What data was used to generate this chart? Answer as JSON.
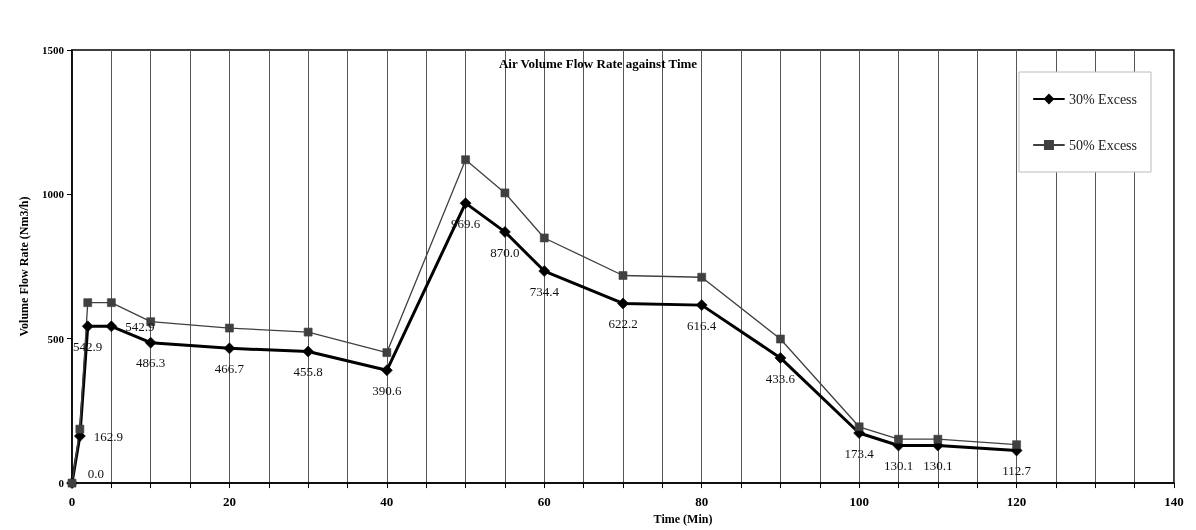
{
  "chart_data": {
    "type": "line",
    "title": "Air Volume Flow Rate against Time",
    "xlabel": "Time (Min)",
    "ylabel": "Volume Flow Rate (Nm3/h)",
    "x": [
      0,
      1,
      2,
      5,
      10,
      20,
      30,
      40,
      50,
      55,
      60,
      70,
      80,
      90,
      100,
      105,
      110,
      120
    ],
    "series": [
      {
        "name": "30% Excess",
        "color": "#000000",
        "marker": "diamond",
        "value_labels": [
          "0.0",
          "162.9",
          "542.9",
          "542.9",
          "486.3",
          "466.7",
          "455.8",
          "390.6",
          "969.6",
          "870.0",
          "734.4",
          "622.2",
          "616.4",
          "433.6",
          "173.4",
          "130.1",
          "130.1",
          "112.7"
        ],
        "values": [
          0.0,
          162.9,
          542.9,
          542.9,
          486.3,
          466.7,
          455.8,
          390.6,
          969.6,
          870.0,
          734.4,
          622.2,
          616.4,
          433.6,
          173.4,
          130.1,
          130.1,
          112.7
        ]
      },
      {
        "name": "50% Excess",
        "color": "#404040",
        "marker": "square",
        "values": [
          0,
          187,
          625,
          625,
          559,
          537,
          523,
          452,
          1120,
          1005,
          849,
          719,
          713,
          499,
          195,
          152,
          152,
          133
        ]
      }
    ],
    "xlim": [
      0,
      140
    ],
    "xticks": [
      0,
      {
        "value": 5,
        "label": null
      },
      {
        "value": 10,
        "label": null
      },
      {
        "value": 15,
        "label": null
      },
      20,
      {
        "value": 25,
        "label": null
      },
      {
        "value": 30,
        "label": null
      },
      {
        "value": 35,
        "label": null
      },
      40,
      {
        "value": 45,
        "label": null
      },
      {
        "value": 50,
        "label": null
      },
      {
        "value": 55,
        "label": null
      },
      60,
      {
        "value": 65,
        "label": null
      },
      {
        "value": 70,
        "label": null
      },
      {
        "value": 75,
        "label": null
      },
      80,
      {
        "value": 85,
        "label": null
      },
      {
        "value": 90,
        "label": null
      },
      {
        "value": 95,
        "label": null
      },
      100,
      {
        "value": 105,
        "label": null
      },
      {
        "value": 110,
        "label": null
      },
      {
        "value": 115,
        "label": null
      },
      120,
      {
        "value": 125,
        "label": null
      },
      {
        "value": 130,
        "label": null
      },
      {
        "value": 135,
        "label": null
      },
      140
    ],
    "ylim": [
      0,
      1500
    ],
    "yticks": [
      0,
      500,
      1000,
      1500
    ],
    "grid": "x",
    "legend": "top right",
    "line_style": "solid"
  }
}
